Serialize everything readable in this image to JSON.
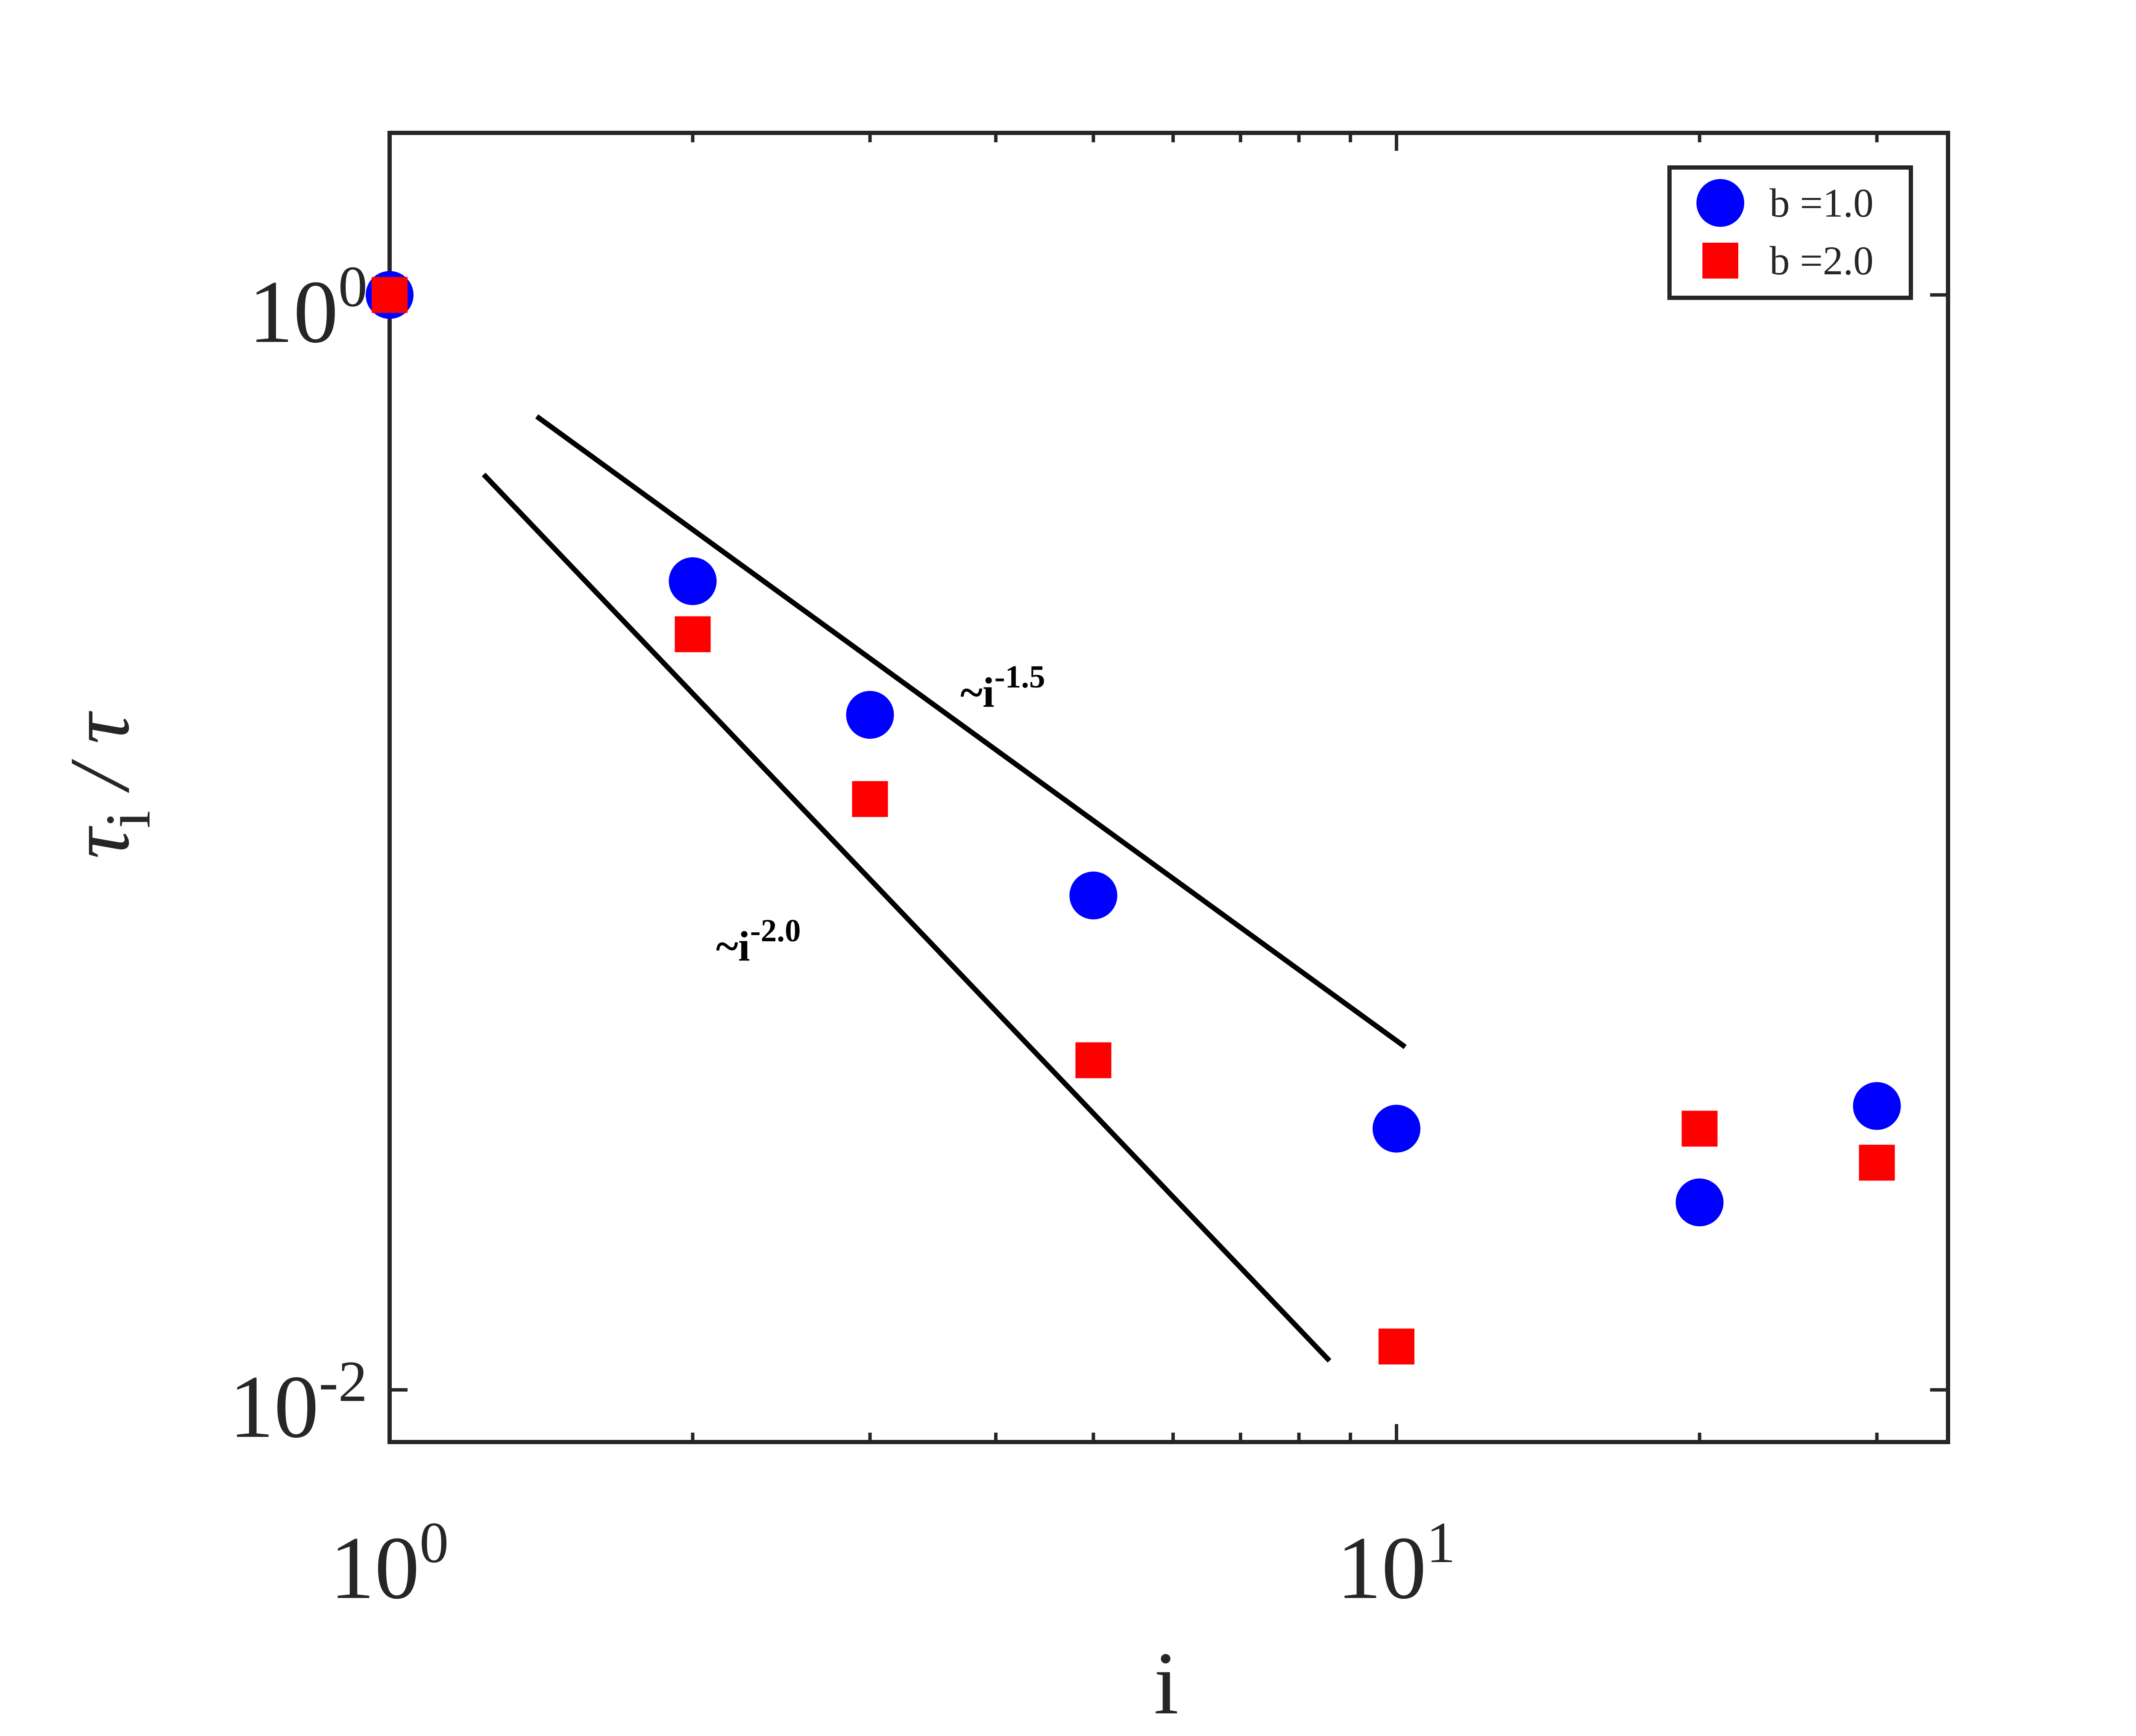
{
  "chart_data": {
    "type": "scatter",
    "xlabel": "i",
    "ylabel": {
      "text": "τ",
      "sub": "i",
      "rest": " / τ"
    },
    "xscale": "log",
    "yscale": "log",
    "xlim": [
      1,
      35.3
    ],
    "ylim": [
      0.00803,
      1.977
    ],
    "xticks": [
      {
        "value": 1,
        "label": "10",
        "sup": "0"
      },
      {
        "value": 10,
        "label": "10",
        "sup": "1"
      }
    ],
    "xminorticks": [
      2,
      3,
      4,
      5,
      6,
      7,
      8,
      9,
      20,
      30
    ],
    "yticks": [
      {
        "value": 0.01,
        "label": "10",
        "sup": "-2"
      },
      {
        "value": 1,
        "label": "10",
        "sup": "0"
      }
    ],
    "grid": false,
    "legend": "upper right",
    "series": [
      {
        "name": "b =1.0",
        "color": "#0000ff",
        "marker": "circle",
        "x": [
          1,
          2,
          3,
          5,
          10,
          20,
          30
        ],
        "values": [
          1,
          0.3,
          0.171,
          0.08,
          0.03,
          0.022,
          0.033
        ]
      },
      {
        "name": "b =2.0",
        "color": "#ff0000",
        "marker": "square",
        "x": [
          1,
          2,
          3,
          5,
          10,
          20,
          30
        ],
        "values": [
          1,
          0.24,
          0.12,
          0.04,
          0.012,
          0.03,
          0.026
        ]
      }
    ],
    "guides": [
      {
        "text": "~i",
        "sup": "-1.5",
        "x": [
          1.4,
          10.2
        ],
        "y": [
          0.6,
          0.0423
        ]
      },
      {
        "text": "~i",
        "sup": "-2.0",
        "x": [
          1.24,
          8.58
        ],
        "y": [
          0.47,
          0.0113
        ]
      }
    ]
  }
}
